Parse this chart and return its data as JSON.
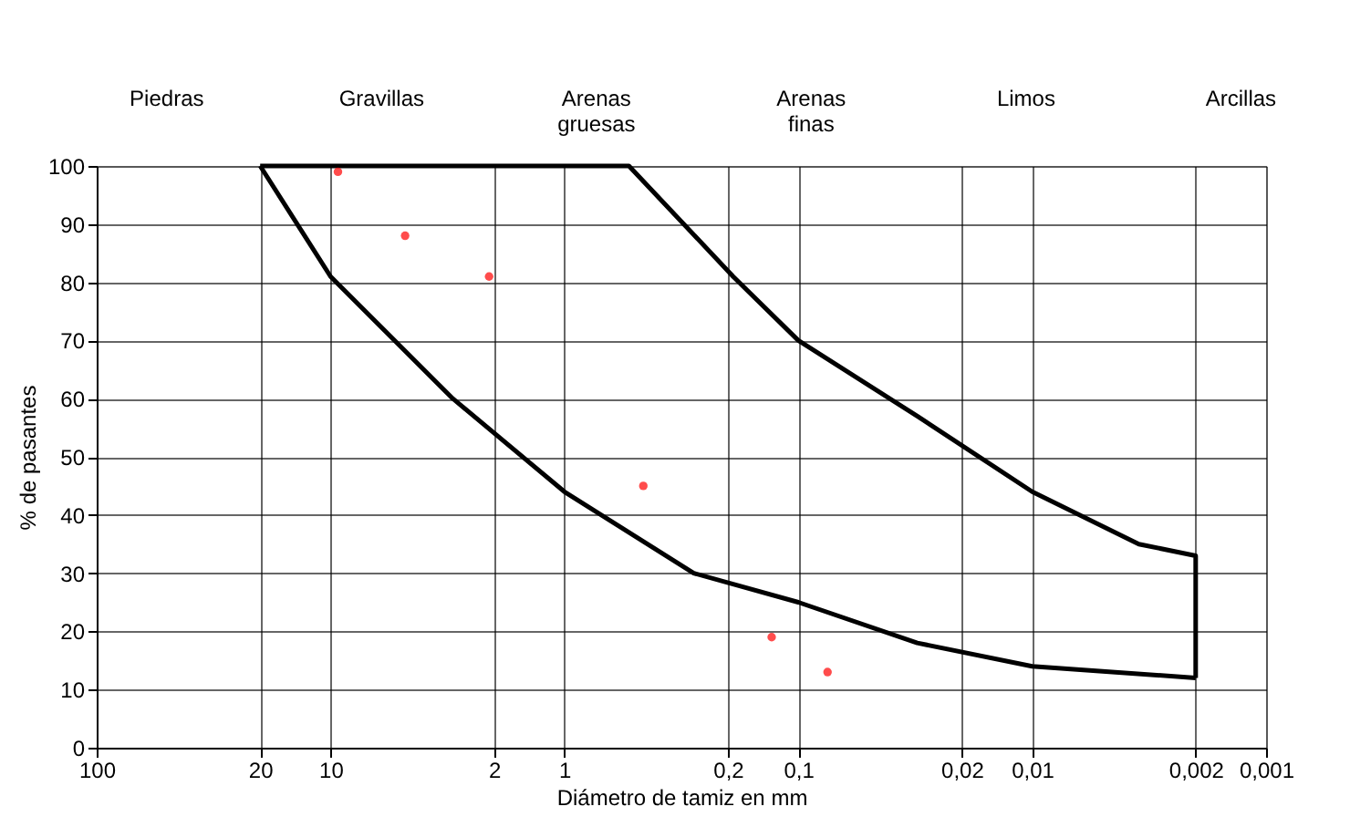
{
  "chart_data": {
    "type": "line",
    "xlabel": "Diámetro de tamiz en mm",
    "ylabel": "% de pasantes",
    "annotations": [
      "Piedras",
      "Gravillas",
      "Arenas\ngruesas",
      "Arenas\nfinas",
      "Limos",
      "Arcillas"
    ],
    "log": "x",
    "xlim": [
      100,
      0.001
    ],
    "xticks": [
      100,
      20,
      10,
      2,
      1,
      {
        "value": 0.2,
        "label": "0,2"
      },
      {
        "value": 0.1,
        "label": "0,1"
      },
      {
        "value": 0.02,
        "label": "0,02"
      },
      {
        "value": 0.01,
        "label": "0,01"
      },
      {
        "value": 0.002,
        "label": "0,002"
      },
      {
        "value": 0.001,
        "label": "0,001"
      }
    ],
    "ylim": [
      0,
      100
    ],
    "yticks": [
      0,
      10,
      20,
      30,
      40,
      50,
      60,
      70,
      80,
      90,
      100
    ],
    "grid": true,
    "series": [
      {
        "color": "#000000",
        "marker": "none",
        "line_style": "solid",
        "x": [
          20,
          0.53,
          0.19,
          0.1,
          0.031,
          0.01,
          0.0035,
          0.002,
          0.002
        ],
        "values": [
          100,
          100,
          81,
          70,
          57,
          44,
          35,
          33,
          12
        ]
      },
      {
        "color": "#000000",
        "marker": "none",
        "line_style": "solid",
        "x": [
          0.002,
          0.01,
          0.031,
          0.1,
          0.28,
          1,
          3,
          10,
          20
        ],
        "values": [
          12,
          14,
          18,
          25,
          30,
          44,
          60,
          81,
          100
        ]
      },
      {
        "type": "scatter",
        "color": "#ff0000",
        "marker": "circle",
        "x": [
          9.3,
          4.8,
          2.1,
          0.46,
          0.13,
          0.075
        ],
        "values": [
          99,
          88,
          81,
          45,
          19,
          13
        ]
      }
    ]
  }
}
